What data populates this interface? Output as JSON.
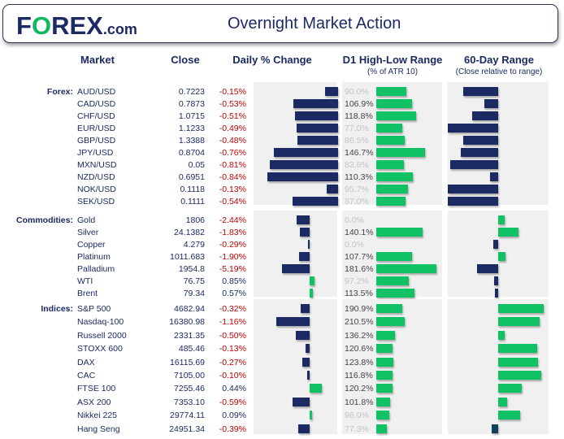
{
  "header": {
    "logo": "FOREX.com",
    "title": "Overnight Market Action"
  },
  "columns": {
    "market": "Market",
    "close": "Close",
    "daily": "Daily % Change",
    "d1": "D1 High-Low Range",
    "d1_sub": "(% of ATR 10)",
    "range60": "60-Day Range",
    "range60_sub": "(Close relative to range)"
  },
  "colors": {
    "navy": "#1c2a64",
    "green": "#10c264",
    "red": "#c00000",
    "teal": "#0f4256"
  },
  "chart_data": {
    "type": "table",
    "sections": [
      {
        "label": "Forex:",
        "rows": [
          {
            "market": "AUD/USD",
            "close": "0.7223",
            "change": "-0.15%",
            "d1": "90.0%",
            "range60": -0.69
          },
          {
            "market": "CAD/USD",
            "close": "0.7873",
            "change": "-0.53%",
            "d1": "106.9%",
            "range60": -0.27
          },
          {
            "market": "CHF/USD",
            "close": "1.0715",
            "change": "-0.51%",
            "d1": "118.8%",
            "range60": -0.52
          },
          {
            "market": "EUR/USD",
            "close": "1.1233",
            "change": "-0.49%",
            "d1": "77.0%",
            "range60": -1.0
          },
          {
            "market": "GBP/USD",
            "close": "1.3388",
            "change": "-0.48%",
            "d1": "86.5%",
            "range60": -0.69
          },
          {
            "market": "JPY/USD",
            "close": "0.8704",
            "change": "-0.76%",
            "d1": "146.7%",
            "range60": -0.74
          },
          {
            "market": "MXN/USD",
            "close": "0.05",
            "change": "-0.81%",
            "d1": "83.6%",
            "range60": -0.95
          },
          {
            "market": "NZD/USD",
            "close": "0.6951",
            "change": "-0.84%",
            "d1": "110.3%",
            "range60": -0.16
          },
          {
            "market": "NOK/USD",
            "close": "0.1118",
            "change": "-0.13%",
            "d1": "95.7%",
            "range60": -1.0
          },
          {
            "market": "SEK/USD",
            "close": "0.1111",
            "change": "-0.54%",
            "d1": "87.0%",
            "range60": -1.0
          }
        ]
      },
      {
        "label": "Commodities:",
        "rows": [
          {
            "market": "Gold",
            "close": "1806",
            "change": "-2.44%",
            "d1": "0.0%",
            "range60": 0.13
          },
          {
            "market": "Silver",
            "close": "24.1382",
            "change": "-1.83%",
            "d1": "140.1%",
            "range60": 0.4
          },
          {
            "market": "Copper",
            "close": "4.279",
            "change": "-0.29%",
            "d1": "0.0%",
            "range60": -0.1
          },
          {
            "market": "Platinum",
            "close": "1011.683",
            "change": "-1.90%",
            "d1": "107.7%",
            "range60": 0.15
          },
          {
            "market": "Palladium",
            "close": "1954.8",
            "change": "-5.19%",
            "d1": "181.6%",
            "range60": -0.42
          },
          {
            "market": "WTI",
            "close": "76.75",
            "change": "0.85%",
            "d1": "97.2%",
            "range60": -0.08
          },
          {
            "market": "Brent",
            "close": "79.34",
            "change": "0.57%",
            "d1": "113.5%",
            "range60": -0.06
          }
        ]
      },
      {
        "label": "Indices:",
        "rows": [
          {
            "market": "S&P 500",
            "close": "4682.94",
            "change": "-0.32%",
            "d1": "190.9%",
            "range60": 0.9
          },
          {
            "market": "Nasdaq-100",
            "close": "16380.98",
            "change": "-1.16%",
            "d1": "210.5%",
            "range60": 0.82
          },
          {
            "market": "Russell 2000",
            "close": "2331.35",
            "change": "-0.50%",
            "d1": "136.2%",
            "range60": 0.13
          },
          {
            "market": "STOXX 600",
            "close": "485.46",
            "change": "-0.13%",
            "d1": "120.6%",
            "range60": 0.77
          },
          {
            "market": "DAX",
            "close": "16115.69",
            "change": "-0.27%",
            "d1": "123.8%",
            "range60": 0.79
          },
          {
            "market": "CAC",
            "close": "7105.00",
            "change": "-0.10%",
            "d1": "116.8%",
            "range60": 0.85
          },
          {
            "market": "FTSE 100",
            "close": "7255.46",
            "change": "0.44%",
            "d1": "120.2%",
            "range60": 0.47
          },
          {
            "market": "ASX 200",
            "close": "7353.10",
            "change": "-0.59%",
            "d1": "101.8%",
            "range60": 0.18
          },
          {
            "market": "Nikkei 225",
            "close": "29774.11",
            "change": "0.09%",
            "d1": "96.0%",
            "range60": 0.43
          },
          {
            "market": "Hang Seng",
            "close": "24951.34",
            "change": "-0.39%",
            "d1": "77.3%",
            "range60": -0.13
          }
        ]
      }
    ]
  }
}
